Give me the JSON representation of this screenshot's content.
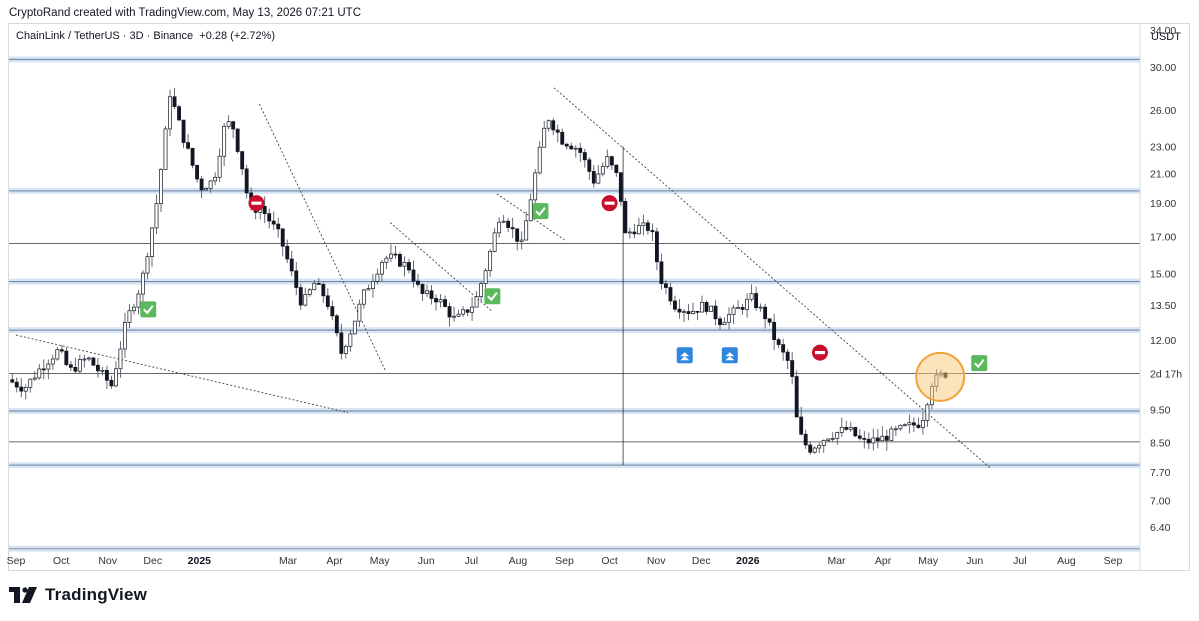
{
  "header": {
    "attribution": "CryptoRand created with TradingView.com, May 13, 2026 07:21 UTC"
  },
  "symbol": {
    "name": "ChainLink / TetherUS",
    "interval": "3D",
    "exchange": "Binance",
    "change": "+0.28 (+2.72%)",
    "separator": " · "
  },
  "brand": {
    "logo_text": "TradingView"
  },
  "colors": {
    "up": "#ffffff",
    "down": "#131722",
    "wick": "#555a63",
    "support_band": "#c9dcf3",
    "support_line": "#6b7f99",
    "highlight_circle_fill": "#f8c978",
    "highlight_circle_stroke": "#f0a33a",
    "check": "#5cb85c",
    "no_entry": "#c8102e",
    "arrow_badge": "#2e86de"
  },
  "chart_data": {
    "type": "candlestick",
    "y_scale": "log",
    "y_unit": "USDT",
    "y_ticks": [
      34.0,
      30.0,
      26.0,
      23.0,
      21.0,
      19.0,
      17.0,
      15.0,
      13.5,
      12.0,
      9.5,
      8.5,
      7.7,
      7.0,
      6.4
    ],
    "y_tick_labels": [
      "34.00",
      "30.00",
      "26.00",
      "23.00",
      "21.00",
      "19.00",
      "17.00",
      "15.00",
      "13.50",
      "12.00",
      "9.50",
      "8.50",
      "7.70",
      "7.00",
      "6.40"
    ],
    "countdown_label": "2d 17h",
    "countdown_value": 10.72,
    "x_ticks": [
      {
        "label": "Sep",
        "date": "2024-09-01",
        "bold": false
      },
      {
        "label": "Oct",
        "date": "2024-10-01",
        "bold": false
      },
      {
        "label": "Nov",
        "date": "2024-11-01",
        "bold": false
      },
      {
        "label": "Dec",
        "date": "2024-12-01",
        "bold": false
      },
      {
        "label": "2025",
        "date": "2025-01-01",
        "bold": true
      },
      {
        "label": "Mar",
        "date": "2025-03-01",
        "bold": false
      },
      {
        "label": "Apr",
        "date": "2025-04-01",
        "bold": false
      },
      {
        "label": "May",
        "date": "2025-05-01",
        "bold": false
      },
      {
        "label": "Jun",
        "date": "2025-06-01",
        "bold": false
      },
      {
        "label": "Jul",
        "date": "2025-07-01",
        "bold": false
      },
      {
        "label": "Aug",
        "date": "2025-08-01",
        "bold": false
      },
      {
        "label": "Sep",
        "date": "2025-09-01",
        "bold": false
      },
      {
        "label": "Oct",
        "date": "2025-10-01",
        "bold": false
      },
      {
        "label": "Nov",
        "date": "2025-11-01",
        "bold": false
      },
      {
        "label": "Dec",
        "date": "2025-12-01",
        "bold": false
      },
      {
        "label": "2026",
        "date": "2026-01-01",
        "bold": true
      },
      {
        "label": "Mar",
        "date": "2026-03-01",
        "bold": false
      },
      {
        "label": "Apr",
        "date": "2026-04-01",
        "bold": false
      },
      {
        "label": "May",
        "date": "2026-05-01",
        "bold": false
      },
      {
        "label": "Jun",
        "date": "2026-06-01",
        "bold": false
      },
      {
        "label": "Jul",
        "date": "2026-07-01",
        "bold": false
      },
      {
        "label": "Aug",
        "date": "2026-08-01",
        "bold": false
      },
      {
        "label": "Sep",
        "date": "2026-09-01",
        "bold": false
      }
    ],
    "price_path": [
      [
        "2024-08-28",
        10.5
      ],
      [
        "2024-09-08",
        10.2
      ],
      [
        "2024-09-20",
        11.0
      ],
      [
        "2024-10-01",
        11.6
      ],
      [
        "2024-10-08",
        10.8
      ],
      [
        "2024-10-20",
        11.3
      ],
      [
        "2024-11-05",
        10.3
      ],
      [
        "2024-11-15",
        12.8
      ],
      [
        "2024-11-25",
        14.5
      ],
      [
        "2024-12-05",
        19.0
      ],
      [
        "2024-12-10",
        23.0
      ],
      [
        "2024-12-14",
        27.5
      ],
      [
        "2024-12-22",
        24.0
      ],
      [
        "2025-01-03",
        20.0
      ],
      [
        "2025-01-12",
        20.5
      ],
      [
        "2025-01-20",
        25.0
      ],
      [
        "2025-01-25",
        24.5
      ],
      [
        "2025-02-01",
        21.0
      ],
      [
        "2025-02-05",
        18.5
      ],
      [
        "2025-02-12",
        18.8
      ],
      [
        "2025-02-25",
        17.0
      ],
      [
        "2025-03-05",
        15.0
      ],
      [
        "2025-03-12",
        13.5
      ],
      [
        "2025-03-20",
        14.5
      ],
      [
        "2025-03-28",
        13.8
      ],
      [
        "2025-04-07",
        11.5
      ],
      [
        "2025-04-14",
        12.5
      ],
      [
        "2025-04-22",
        14.0
      ],
      [
        "2025-05-05",
        15.8
      ],
      [
        "2025-05-12",
        15.8
      ],
      [
        "2025-05-22",
        15.3
      ],
      [
        "2025-05-30",
        14.0
      ],
      [
        "2025-06-10",
        13.8
      ],
      [
        "2025-06-22",
        12.8
      ],
      [
        "2025-07-05",
        13.6
      ],
      [
        "2025-07-13",
        15.5
      ],
      [
        "2025-07-22",
        18.5
      ],
      [
        "2025-08-05",
        16.5
      ],
      [
        "2025-08-15",
        21.5
      ],
      [
        "2025-08-22",
        25.5
      ],
      [
        "2025-09-01",
        23.5
      ],
      [
        "2025-09-12",
        22.8
      ],
      [
        "2025-09-22",
        20.5
      ],
      [
        "2025-10-01",
        22.0
      ],
      [
        "2025-10-09",
        20.5
      ],
      [
        "2025-10-12",
        17.0
      ],
      [
        "2025-10-20",
        17.5
      ],
      [
        "2025-10-30",
        17.5
      ],
      [
        "2025-11-05",
        14.8
      ],
      [
        "2025-11-15",
        13.5
      ],
      [
        "2025-11-25",
        13.2
      ],
      [
        "2025-12-05",
        13.5
      ],
      [
        "2025-12-15",
        12.8
      ],
      [
        "2025-12-25",
        13.2
      ],
      [
        "2026-01-05",
        13.8
      ],
      [
        "2026-01-14",
        13.0
      ],
      [
        "2026-01-22",
        11.8
      ],
      [
        "2026-01-31",
        11.0
      ],
      [
        "2026-02-05",
        8.8
      ],
      [
        "2026-02-12",
        8.3
      ],
      [
        "2026-02-25",
        8.7
      ],
      [
        "2026-03-10",
        8.9
      ],
      [
        "2026-03-20",
        8.5
      ],
      [
        "2026-04-01",
        8.6
      ],
      [
        "2026-04-15",
        8.9
      ],
      [
        "2026-04-28",
        9.1
      ],
      [
        "2026-05-05",
        10.4
      ],
      [
        "2026-05-13",
        10.72
      ]
    ],
    "horizontal_levels": [
      {
        "price": 30.8,
        "kind": "band"
      },
      {
        "price": 19.8,
        "kind": "band"
      },
      {
        "price": 16.6,
        "kind": "line"
      },
      {
        "price": 14.6,
        "kind": "band"
      },
      {
        "price": 12.4,
        "kind": "band"
      },
      {
        "price": 10.72,
        "kind": "line"
      },
      {
        "price": 9.45,
        "kind": "band"
      },
      {
        "price": 8.52,
        "kind": "line"
      },
      {
        "price": 7.88,
        "kind": "band"
      },
      {
        "price": 5.95,
        "kind": "band"
      }
    ],
    "vertical_markers": [
      {
        "date": "2025-10-10",
        "from": 7.88,
        "to": 23.0
      }
    ],
    "trendlines": [
      {
        "from": [
          "2024-09-01",
          12.2
        ],
        "to": [
          "2025-04-10",
          9.4
        ]
      },
      {
        "from": [
          "2025-02-10",
          26.5
        ],
        "to": [
          "2025-05-05",
          10.8
        ]
      },
      {
        "from": [
          "2025-05-08",
          17.8
        ],
        "to": [
          "2025-07-15",
          13.2
        ]
      },
      {
        "from": [
          "2025-07-18",
          19.6
        ],
        "to": [
          "2025-09-01",
          16.8
        ]
      },
      {
        "from": [
          "2025-08-25",
          28.0
        ],
        "to": [
          "2026-06-12",
          7.78
        ]
      }
    ],
    "annotations": [
      {
        "kind": "check",
        "date": "2024-11-28",
        "price": 13.3
      },
      {
        "kind": "no_entry",
        "date": "2025-02-08",
        "price": 19.0
      },
      {
        "kind": "check",
        "date": "2025-08-16",
        "price": 18.5
      },
      {
        "kind": "check",
        "date": "2025-07-15",
        "price": 13.9
      },
      {
        "kind": "no_entry",
        "date": "2025-10-01",
        "price": 19.0
      },
      {
        "kind": "arrow_up",
        "date": "2025-11-20",
        "price": 11.4
      },
      {
        "kind": "arrow_up",
        "date": "2025-12-20",
        "price": 11.4
      },
      {
        "kind": "no_entry",
        "date": "2026-02-18",
        "price": 11.5
      },
      {
        "kind": "check",
        "date": "2026-06-04",
        "price": 11.1
      }
    ],
    "highlight": {
      "date": "2026-05-09",
      "price": 10.6
    }
  }
}
